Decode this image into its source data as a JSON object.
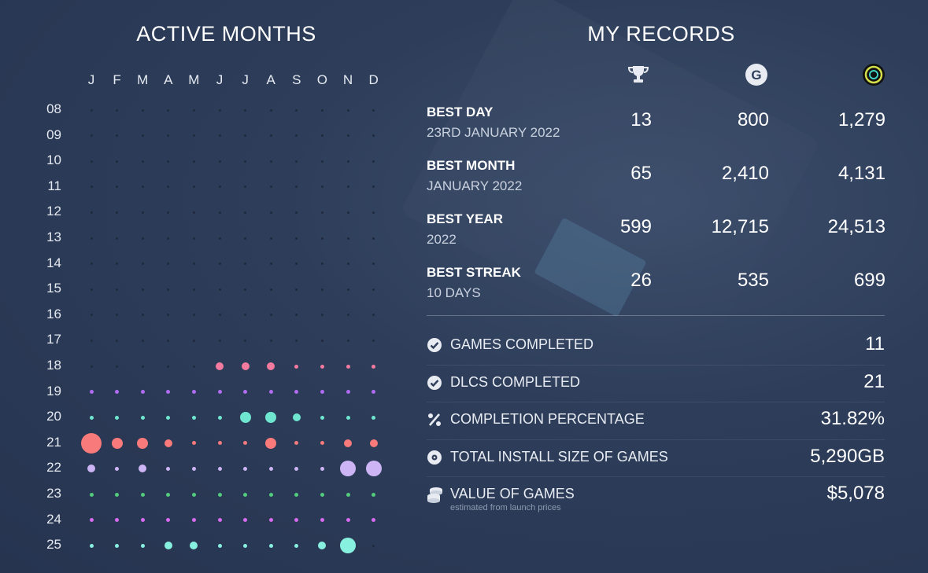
{
  "active_months": {
    "title": "ACTIVE MONTHS",
    "months": [
      "J",
      "F",
      "M",
      "A",
      "M",
      "J",
      "J",
      "A",
      "S",
      "O",
      "N",
      "D"
    ],
    "years": [
      "08",
      "09",
      "10",
      "11",
      "12",
      "13",
      "14",
      "15",
      "16",
      "17",
      "18",
      "19",
      "20",
      "21",
      "22",
      "23",
      "24",
      "25"
    ],
    "colors": {
      "18": "#f47aa0",
      "19": "#b06cf0",
      "20": "#6fe6cf",
      "21": "#f87a7a",
      "22": "#cdb5f5",
      "23": "#53cc7d",
      "24": "#d86af0",
      "25": "#87f0de",
      "inactive": "#1f2a3c"
    },
    "intensity": {
      "18": [
        0,
        0,
        0,
        0,
        0,
        2,
        2,
        2,
        1,
        1,
        1,
        1
      ],
      "19": [
        1,
        1,
        1,
        1,
        1,
        1,
        1,
        1,
        1,
        1,
        1,
        1
      ],
      "20": [
        1,
        1,
        1,
        1,
        1,
        1,
        3,
        3,
        2,
        1,
        1,
        1
      ],
      "21": [
        5,
        3,
        3,
        2,
        1,
        1,
        1,
        3,
        1,
        1,
        2,
        2
      ],
      "22": [
        2,
        1,
        2,
        1,
        1,
        1,
        1,
        1,
        1,
        1,
        4,
        4
      ],
      "23": [
        1,
        1,
        1,
        1,
        1,
        1,
        1,
        1,
        1,
        1,
        1,
        1
      ],
      "24": [
        1,
        1,
        1,
        1,
        1,
        1,
        1,
        1,
        1,
        1,
        1,
        1
      ],
      "25": [
        1,
        1,
        1,
        2,
        2,
        1,
        1,
        1,
        1,
        2,
        4,
        0
      ]
    }
  },
  "records": {
    "title": "MY RECORDS",
    "columns": [
      {
        "icon": "trophy-icon"
      },
      {
        "icon": "gamerscore-icon",
        "glyph": "G"
      },
      {
        "icon": "trueachievement-icon"
      }
    ],
    "rows": [
      {
        "label": "BEST DAY",
        "sub": "23RD JANUARY 2022",
        "values": [
          "13",
          "800",
          "1,279"
        ]
      },
      {
        "label": "BEST MONTH",
        "sub": "JANUARY 2022",
        "values": [
          "65",
          "2,410",
          "4,131"
        ]
      },
      {
        "label": "BEST YEAR",
        "sub": "2022",
        "values": [
          "599",
          "12,715",
          "24,513"
        ]
      },
      {
        "label": "BEST STREAK",
        "sub": "10 DAYS",
        "values": [
          "26",
          "535",
          "699"
        ]
      }
    ]
  },
  "stats": [
    {
      "icon": "check-circle-icon",
      "label": "GAMES COMPLETED",
      "value": "11"
    },
    {
      "icon": "check-circle-icon",
      "label": "DLCS COMPLETED",
      "value": "21"
    },
    {
      "icon": "percent-icon",
      "label": "COMPLETION PERCENTAGE",
      "value": "31.82%"
    },
    {
      "icon": "disc-icon",
      "label": "TOTAL INSTALL SIZE OF GAMES",
      "value": "5,290GB"
    },
    {
      "icon": "coins-icon",
      "label": "VALUE OF GAMES",
      "value": "$5,078",
      "note": "estimated from launch prices"
    }
  ]
}
